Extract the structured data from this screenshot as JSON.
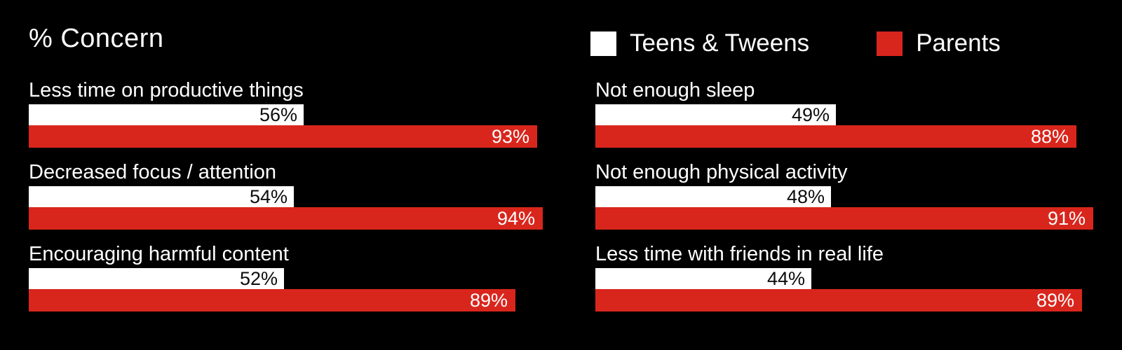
{
  "page": {
    "background_color": "#000000",
    "text_color": "#ffffff"
  },
  "title": "% Concern",
  "legend": {
    "items": [
      {
        "label": "Teens & Tweens",
        "color": "#ffffff"
      },
      {
        "label": "Parents",
        "color": "#d9261d"
      }
    ]
  },
  "chart_data": {
    "type": "bar",
    "orientation": "horizontal",
    "title": "% Concern",
    "unit": "%",
    "xlim": [
      0,
      100
    ],
    "grid": false,
    "legend_position": "top-right",
    "value_labels": "inside-end",
    "background": "#000000",
    "categories": [
      "Less time on productive things",
      "Decreased focus / attention",
      "Encouraging harmful content",
      "Not enough sleep",
      "Not enough physical activity",
      "Less time with friends in real life"
    ],
    "series": [
      {
        "name": "Teens & Tweens",
        "color": "#ffffff",
        "values": [
          56,
          54,
          52,
          49,
          48,
          44
        ]
      },
      {
        "name": "Parents",
        "color": "#d9261d",
        "values": [
          93,
          94,
          89,
          88,
          91,
          89
        ]
      }
    ],
    "columns": [
      {
        "rows": [
          {
            "label": "Less time on productive things",
            "teens": 56,
            "teens_text": "56%",
            "parents": 93,
            "parents_text": "93%"
          },
          {
            "label": "Decreased focus / attention",
            "teens": 54,
            "teens_text": "54%",
            "parents": 94,
            "parents_text": "94%"
          },
          {
            "label": "Encouraging harmful content",
            "teens": 52,
            "teens_text": "52%",
            "parents": 89,
            "parents_text": "89%"
          }
        ]
      },
      {
        "rows": [
          {
            "label": "Not enough sleep",
            "teens": 49,
            "teens_text": "49%",
            "parents": 88,
            "parents_text": "88%"
          },
          {
            "label": "Not enough physical activity",
            "teens": 48,
            "teens_text": "48%",
            "parents": 91,
            "parents_text": "91%"
          },
          {
            "label": "Less time with friends in real life",
            "teens": 44,
            "teens_text": "44%",
            "parents": 89,
            "parents_text": "89%"
          }
        ]
      }
    ]
  }
}
